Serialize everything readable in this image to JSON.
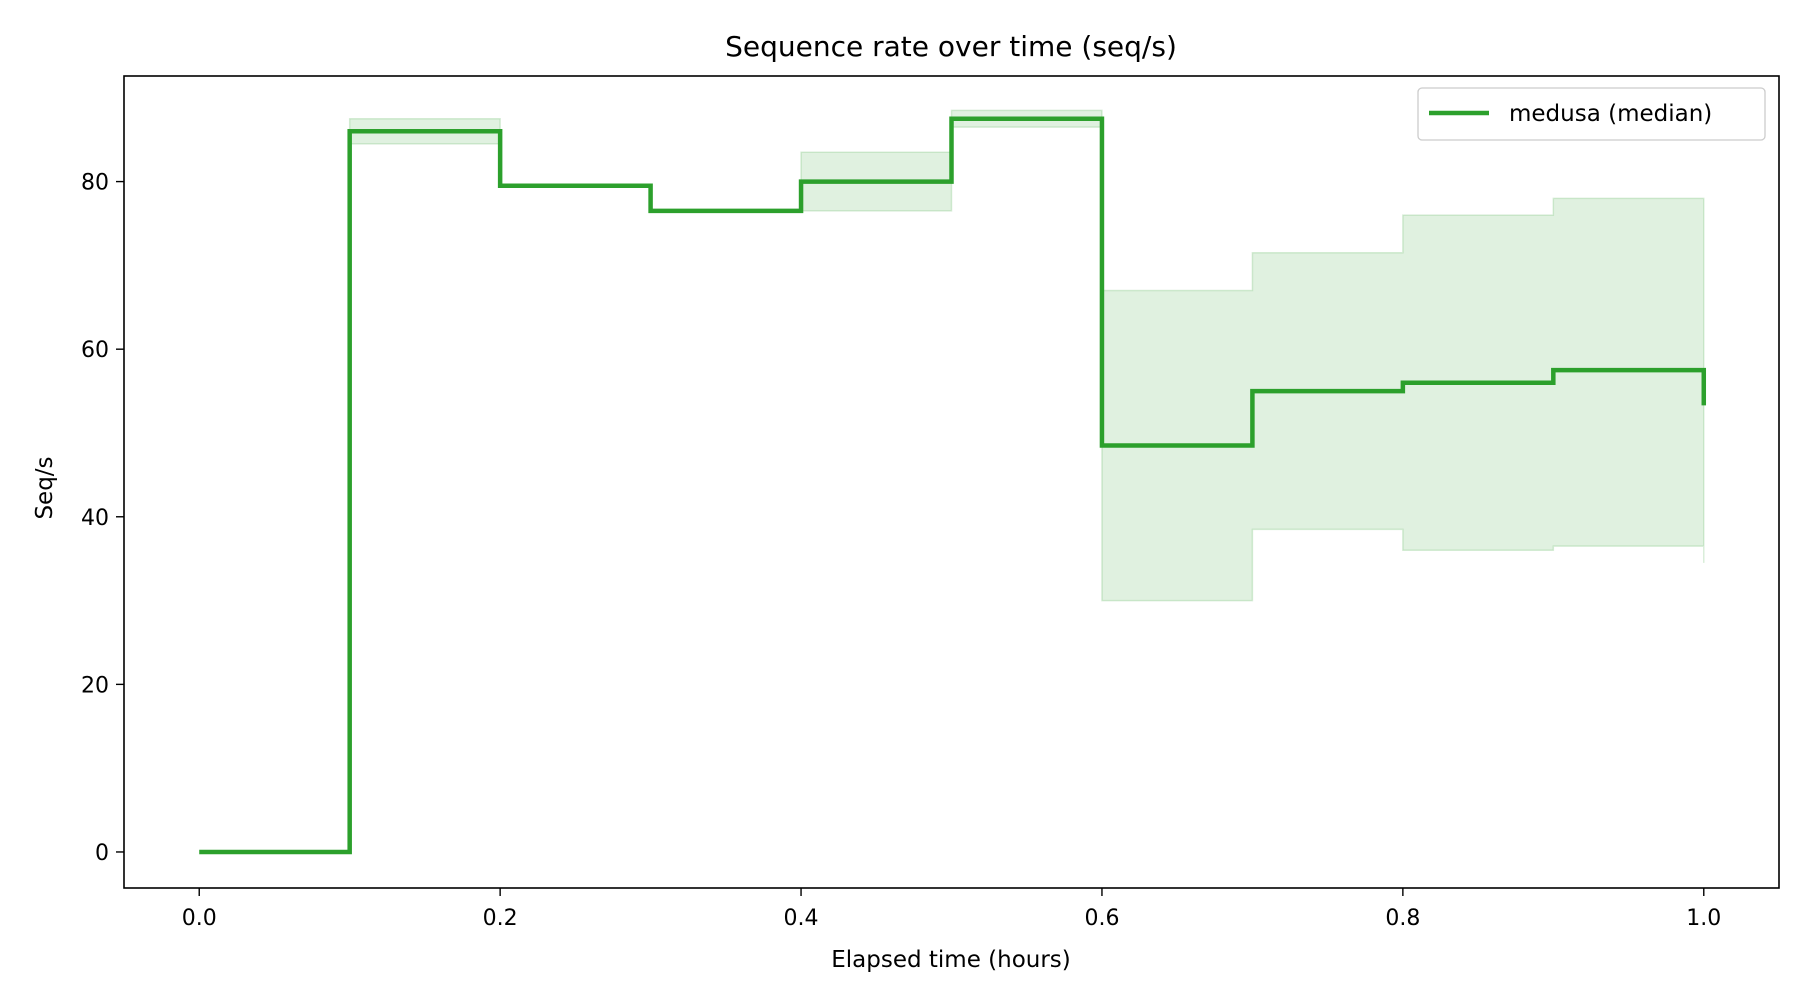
{
  "chart_data": {
    "type": "line",
    "step": "post",
    "title": "Sequence rate over time (seq/s)",
    "xlabel": "Elapsed time (hours)",
    "ylabel": "Seq/s",
    "xlim": [
      -0.05,
      1.05
    ],
    "ylim": [
      -4.3,
      92.6
    ],
    "xticks": [
      0.0,
      0.2,
      0.4,
      0.6,
      0.8,
      1.0
    ],
    "xtick_labels": [
      "0.0",
      "0.2",
      "0.4",
      "0.6",
      "0.8",
      "1.0"
    ],
    "yticks": [
      0,
      20,
      40,
      60,
      80
    ],
    "ytick_labels": [
      "0",
      "20",
      "40",
      "60",
      "80"
    ],
    "grid": false,
    "legend_position": "top-right",
    "series": [
      {
        "name": "medusa (median)",
        "color": "#2ca02c",
        "x": [
          0.0,
          0.1,
          0.2,
          0.3,
          0.4,
          0.5,
          0.6,
          0.7,
          0.8,
          0.9,
          1.0
        ],
        "y": [
          0.0,
          86.0,
          79.5,
          76.5,
          80.0,
          87.5,
          48.5,
          55.0,
          56.0,
          57.5,
          53.3
        ]
      }
    ],
    "band": {
      "color": "#2ca02c",
      "opacity": 0.15,
      "x": [
        0.1,
        0.2,
        0.3,
        0.4,
        0.5,
        0.6,
        0.7,
        0.8,
        0.9,
        1.0
      ],
      "lower": [
        84.5,
        79.5,
        76.5,
        76.5,
        86.5,
        30.0,
        38.5,
        36.0,
        36.5,
        34.5
      ],
      "upper": [
        87.5,
        79.5,
        76.5,
        83.5,
        88.5,
        67.0,
        71.5,
        76.0,
        78.0,
        78.0
      ]
    }
  }
}
